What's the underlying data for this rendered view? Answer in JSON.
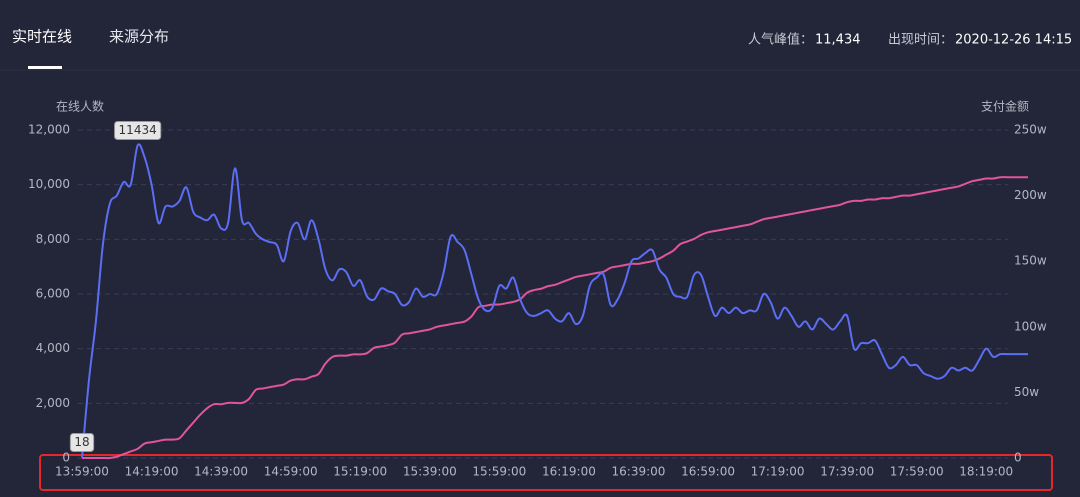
{
  "header": {
    "tabs": [
      "实时在线",
      "来源分布"
    ],
    "peak_label": "人气峰值：",
    "peak_value": "11,434",
    "time_label": "出现时间：",
    "time_value": "2020-12-26 14:15"
  },
  "chart_data": {
    "type": "line",
    "y_label": "在线人数",
    "y2_label": "支付金额",
    "categories": [
      "13:59:00",
      null,
      null,
      null,
      null,
      null,
      null,
      null,
      null,
      null,
      "14:19:00",
      null,
      null,
      null,
      null,
      null,
      null,
      null,
      null,
      null,
      "14:39:00",
      null,
      null,
      null,
      null,
      null,
      null,
      null,
      null,
      null,
      "14:59:00",
      null,
      null,
      null,
      null,
      null,
      null,
      null,
      null,
      null,
      "15:19:00",
      null,
      null,
      null,
      null,
      null,
      null,
      null,
      null,
      null,
      "15:39:00",
      null,
      null,
      null,
      null,
      null,
      null,
      null,
      null,
      null,
      "15:59:00",
      null,
      null,
      null,
      null,
      null,
      null,
      null,
      null,
      null,
      "16:19:00",
      null,
      null,
      null,
      null,
      null,
      null,
      null,
      null,
      null,
      "16:39:00",
      null,
      null,
      null,
      null,
      null,
      null,
      null,
      null,
      null,
      "16:59:00",
      null,
      null,
      null,
      null,
      null,
      null,
      null,
      null,
      null,
      "17:19:00",
      null,
      null,
      null,
      null,
      null,
      null,
      null,
      null,
      null,
      "17:39:00",
      null,
      null,
      null,
      null,
      null,
      null,
      null,
      null,
      null,
      "17:59:00",
      null,
      null,
      null,
      null,
      null,
      null,
      null,
      null,
      null,
      "18:19:00",
      null,
      null,
      null,
      null,
      null,
      null
    ],
    "series": [
      {
        "name": "在线人数",
        "color": "#5b6ef5",
        "values": [
          18,
          2850,
          5000,
          7800,
          9300,
          9600,
          10100,
          10000,
          11434,
          11000,
          10000,
          8600,
          9200,
          9200,
          9400,
          9900,
          9000,
          8800,
          8700,
          8900,
          8400,
          8600,
          10600,
          8700,
          8600,
          8200,
          8000,
          7900,
          7800,
          7200,
          8300,
          8600,
          8000,
          8700,
          8000,
          6900,
          6500,
          6900,
          6800,
          6300,
          6500,
          5900,
          5800,
          6200,
          6100,
          6000,
          5600,
          5700,
          6200,
          5900,
          6000,
          6000,
          6800,
          8100,
          7900,
          7600,
          6700,
          5800,
          5400,
          5500,
          6300,
          6200,
          6600,
          5800,
          5300,
          5200,
          5300,
          5400,
          5100,
          5000,
          5300,
          4900,
          5200,
          6300,
          6600,
          6700,
          5600,
          5800,
          6400,
          7200,
          7300,
          7500,
          7600,
          6900,
          6600,
          6000,
          5900,
          5900,
          6700,
          6700,
          5900,
          5200,
          5500,
          5300,
          5500,
          5300,
          5400,
          5400,
          6000,
          5700,
          5100,
          5500,
          5200,
          4800,
          5000,
          4700,
          5100,
          4900,
          4700,
          5000,
          5200,
          4000,
          4200,
          4200,
          4300,
          3800,
          3300,
          3400,
          3700,
          3400,
          3400,
          3100,
          3000,
          2900,
          3000,
          3300,
          3200,
          3300,
          3200,
          3600,
          4000,
          3700,
          3800,
          3800,
          3800,
          3800,
          3800
        ]
      },
      {
        "name": "支付金额",
        "color": "#e0559b",
        "axis": "y2",
        "values": [
          0,
          0,
          0,
          0,
          0,
          1,
          3,
          5,
          7,
          11,
          12,
          13,
          14,
          14,
          15,
          21,
          27,
          33,
          38,
          41,
          41,
          42,
          42,
          42,
          45,
          52,
          53,
          54,
          55,
          56,
          59,
          60,
          60,
          62,
          64,
          72,
          77,
          78,
          78,
          79,
          79,
          80,
          84,
          85,
          86,
          88,
          94,
          95,
          96,
          97,
          98,
          100,
          101,
          102,
          103,
          104,
          108,
          115,
          116,
          117,
          117,
          118,
          119,
          121,
          126,
          128,
          129,
          131,
          132,
          134,
          136,
          138,
          139,
          140,
          141,
          142,
          145,
          146,
          147,
          148,
          148,
          149,
          150,
          152,
          155,
          158,
          163,
          165,
          167,
          170,
          172,
          173,
          174,
          175,
          176,
          177,
          178,
          180,
          182,
          183,
          184,
          185,
          186,
          187,
          188,
          189,
          190,
          191,
          192,
          193,
          195,
          196,
          196,
          197,
          197,
          198,
          198,
          199,
          200,
          200,
          201,
          202,
          203,
          204,
          205,
          206,
          207,
          209,
          211,
          212,
          213,
          213,
          214,
          214,
          214,
          214,
          214
        ]
      }
    ],
    "ylim": [
      0,
      12000
    ],
    "yticks": [
      0,
      {
        "value": 2000,
        "label": "2,000"
      },
      {
        "value": 4000,
        "label": "4,000"
      },
      {
        "value": 6000,
        "label": "6,000"
      },
      {
        "value": 8000,
        "label": "8,000"
      },
      {
        "value": 10000,
        "label": "10,000"
      },
      {
        "value": 12000,
        "label": "12,000"
      }
    ],
    "y2lim": [
      0,
      250
    ],
    "y2ticks": [
      0,
      {
        "value": 50,
        "label": "50w"
      },
      {
        "value": 100,
        "label": "100w"
      },
      {
        "value": 150,
        "label": "150w"
      },
      {
        "value": 200,
        "label": "200w"
      },
      {
        "value": 250,
        "label": "250w"
      }
    ],
    "grid": true
  }
}
